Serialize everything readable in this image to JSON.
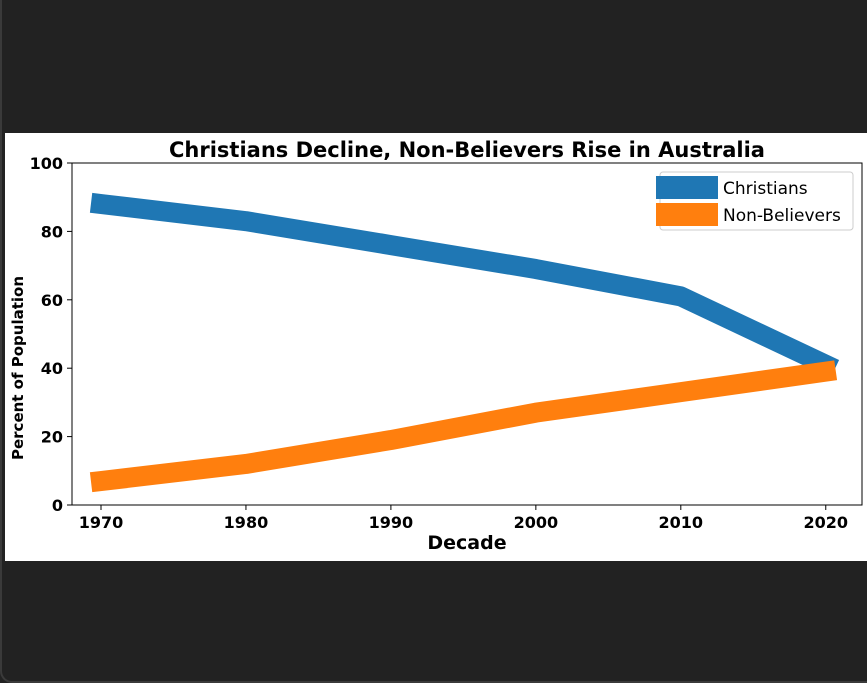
{
  "chart_data": {
    "type": "line",
    "title": "Christians Decline, Non-Believers Rise in Australia",
    "xlabel": "Decade",
    "ylabel": "Percent of Population",
    "x": [
      1970,
      1980,
      1990,
      2000,
      2010,
      2020
    ],
    "xticks": [
      "1970",
      "1980",
      "1990",
      "2000",
      "2010",
      "2020"
    ],
    "yticks": [
      "0",
      "20",
      "40",
      "60",
      "80",
      "100"
    ],
    "xlim": [
      1968,
      2022.5
    ],
    "ylim": [
      0,
      100
    ],
    "grid": false,
    "legend_position": "top-right",
    "series": [
      {
        "name": "Christians",
        "color": "#1f77b4",
        "values": [
          88,
          83,
          76,
          69,
          61,
          41
        ]
      },
      {
        "name": "Non-Believers",
        "color": "#ff7f0e",
        "values": [
          7,
          12,
          19,
          27,
          33,
          39
        ]
      }
    ]
  }
}
